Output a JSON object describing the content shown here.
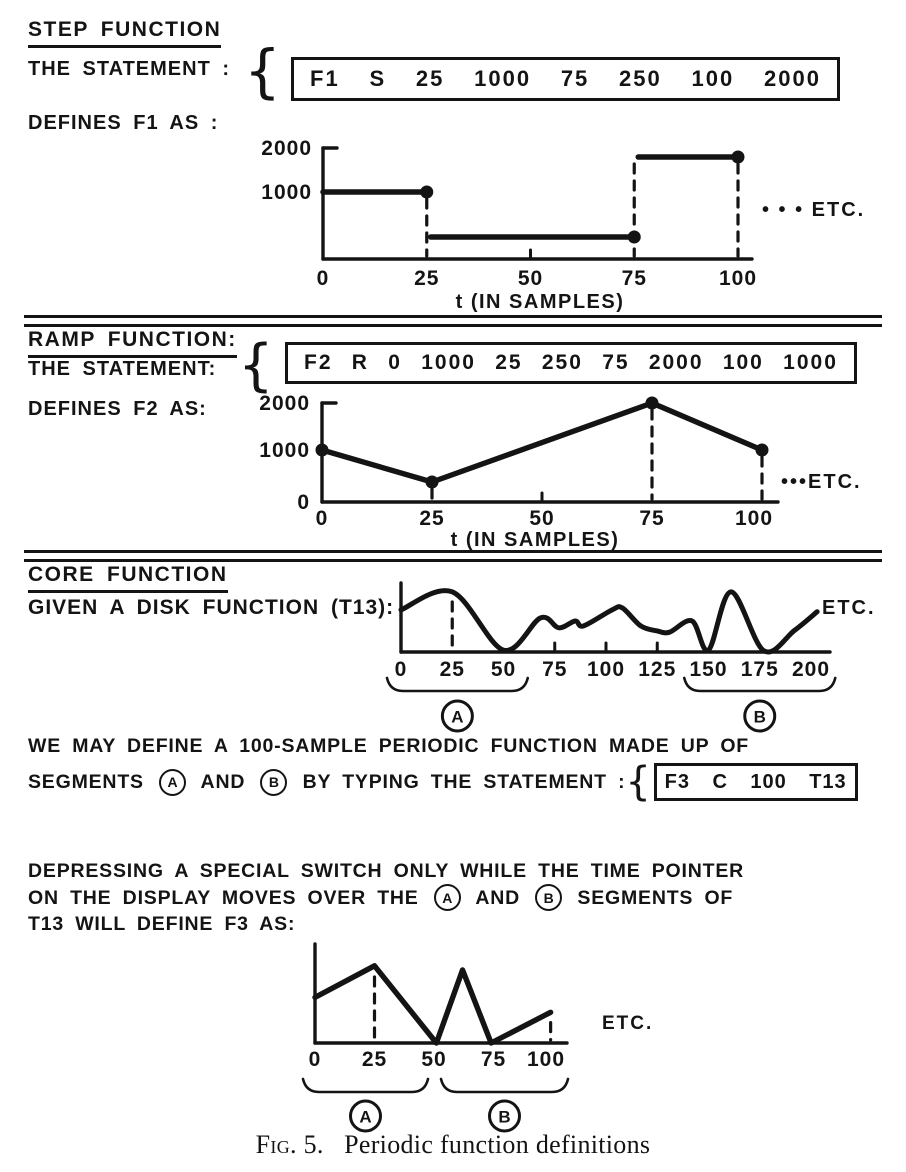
{
  "colors": {
    "bg": "#ffffff",
    "ink": "#141414"
  },
  "step": {
    "title": "STEP FUNCTION",
    "statement_label": "THE STATEMENT :",
    "brace": "{",
    "tokens": [
      "F1",
      "S",
      "25",
      "1000",
      "75",
      "250",
      "100",
      "2000"
    ],
    "defines": "DEFINES F1 AS :"
  },
  "ramp": {
    "title": "RAMP FUNCTION:",
    "statement_label": "THE STATEMENT:",
    "brace": "{",
    "tokens": [
      "F2",
      "R",
      "0",
      "1000",
      "25",
      "250",
      "75",
      "2000",
      "100",
      "1000"
    ],
    "defines": "DEFINES F2 AS:"
  },
  "core": {
    "title": "CORE FUNCTION",
    "given": "GIVEN A DISK FUNCTION (T13):"
  },
  "para1": {
    "line1": "WE MAY DEFINE A 100-SAMPLE PERIODIC FUNCTION MADE UP OF",
    "line2_pre": "SEGMENTS ",
    "circle_a": "A",
    "line2_mid": " AND ",
    "circle_b": "B",
    "line2_post": " BY TYPING THE STATEMENT :",
    "brace": "{",
    "tokens": [
      "F3",
      "C",
      "100",
      "T13"
    ]
  },
  "para2": {
    "line1": "DEPRESSING A SPECIAL SWITCH ONLY WHILE THE TIME POINTER",
    "line2_pre": "ON THE DISPLAY MOVES OVER THE ",
    "circle_a": "A",
    "line2_mid": " AND ",
    "circle_b": "B",
    "line2_post": " SEGMENTS OF",
    "line3": "T13 WILL DEFINE F3 AS:"
  },
  "caption": {
    "fig": "Fig. 5.",
    "text": "Periodic function definitions"
  },
  "chart_data": [
    {
      "id": "f1",
      "type": "step",
      "title": "DEFINES F1 AS :",
      "statement": "F1 S 25 1000 75 250 100 2000",
      "segments": [
        {
          "from": 0,
          "to": 25,
          "value": 1000
        },
        {
          "from": 25,
          "to": 75,
          "value": 250
        },
        {
          "from": 75,
          "to": 100,
          "value": 2000
        }
      ],
      "markers": [
        [
          25,
          1000
        ],
        [
          75,
          250
        ],
        [
          100,
          2000
        ]
      ],
      "dashed": [
        {
          "x": 25,
          "from": 0,
          "to": 1000
        },
        {
          "x": 75,
          "from": 0,
          "to": 2000
        },
        {
          "x": 100,
          "from": 0,
          "to": 2000
        }
      ],
      "x_ticks": [
        0,
        25,
        50,
        75,
        100
      ],
      "y_ticks": [
        1000,
        2000
      ],
      "xlim": [
        0,
        100
      ],
      "ylim": [
        0,
        2000
      ],
      "xlabel": "t (IN SAMPLES)",
      "annotation": "• • • ETC.",
      "baseline_minor_ticks": [
        50
      ]
    },
    {
      "id": "f2",
      "type": "line",
      "title": "DEFINES F2 AS:",
      "statement": "F2 R 0 1000 25 250 75 2000 100 1000",
      "points": [
        [
          0,
          1000
        ],
        [
          25,
          250
        ],
        [
          75,
          2000
        ],
        [
          100,
          1000
        ]
      ],
      "markers": [
        [
          0,
          1000
        ],
        [
          25,
          250
        ],
        [
          75,
          2000
        ],
        [
          100,
          1000
        ]
      ],
      "dashed": [
        {
          "x": 25,
          "from": 0,
          "to": 250
        },
        {
          "x": 75,
          "from": 0,
          "to": 2000
        },
        {
          "x": 100,
          "from": 0,
          "to": 1000
        }
      ],
      "x_ticks": [
        0,
        25,
        50,
        75,
        100
      ],
      "y_ticks": [
        0,
        1000,
        2000
      ],
      "xlim": [
        0,
        100
      ],
      "ylim": [
        0,
        2000
      ],
      "xlabel": "t (IN SAMPLES)",
      "annotation": "•••ETC.",
      "baseline_minor_ticks": [
        50
      ]
    },
    {
      "id": "t13",
      "type": "freehand",
      "title": "GIVEN A DISK FUNCTION (T13):",
      "points": [
        [
          0,
          68
        ],
        [
          25,
          97
        ],
        [
          50,
          3
        ],
        [
          68,
          55
        ],
        [
          77,
          39
        ],
        [
          85,
          50
        ],
        [
          89,
          42
        ],
        [
          103,
          68
        ],
        [
          108,
          71
        ],
        [
          117,
          42
        ],
        [
          125,
          34
        ],
        [
          131,
          32
        ],
        [
          142,
          50
        ],
        [
          150,
          3
        ],
        [
          161,
          97
        ],
        [
          177,
          2
        ],
        [
          192,
          35
        ],
        [
          203,
          65
        ]
      ],
      "dashed": [
        {
          "x": 25,
          "from": 0,
          "to": 92
        }
      ],
      "x_ticks": [
        0,
        25,
        50,
        75,
        100,
        125,
        150,
        175,
        200
      ],
      "xlim": [
        0,
        205
      ],
      "ylim": [
        0,
        100
      ],
      "braces": [
        {
          "from": 0,
          "to": 55,
          "label": "A"
        },
        {
          "from": 145,
          "to": 205,
          "label": "B"
        }
      ],
      "annotation": "ETC.",
      "baseline_minor_ticks": [
        75,
        100,
        125
      ]
    },
    {
      "id": "f3",
      "type": "line",
      "title": "T13 WILL DEFINE F3 AS:",
      "statement": "F3 C 100 T13",
      "points": [
        [
          0,
          55
        ],
        [
          25,
          93
        ],
        [
          51,
          0
        ],
        [
          62,
          88
        ],
        [
          74,
          0
        ],
        [
          99,
          37
        ]
      ],
      "dashed": [
        {
          "x": 25,
          "from": 0,
          "to": 88
        },
        {
          "x": 99,
          "from": 0,
          "to": 33
        }
      ],
      "x_ticks": [
        0,
        25,
        50,
        75,
        100
      ],
      "xlim": [
        0,
        100
      ],
      "ylim": [
        0,
        100
      ],
      "braces": [
        {
          "from": 0,
          "to": 50,
          "label": "A"
        },
        {
          "from": 50,
          "to": 100,
          "label": "B"
        }
      ],
      "annotation": "ETC."
    }
  ]
}
